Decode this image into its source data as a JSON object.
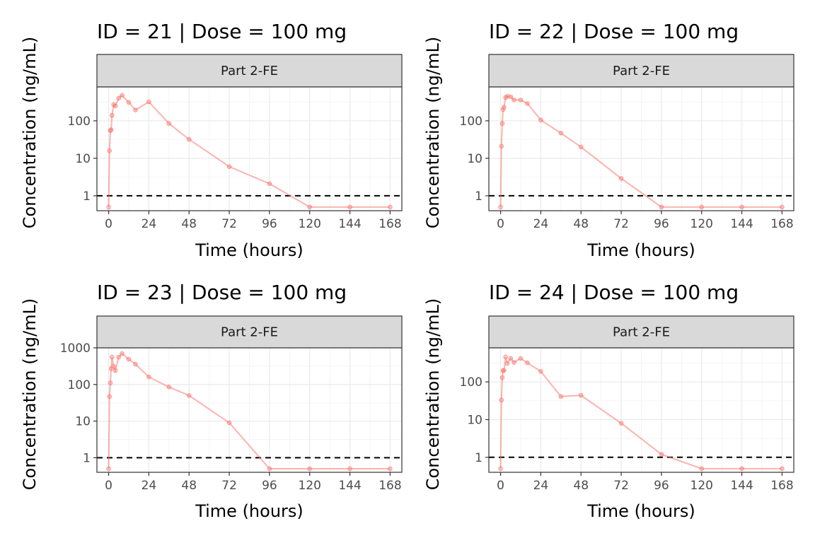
{
  "colors": {
    "series": "#f8766d",
    "strip_fill": "#d9d9d9",
    "strip_border": "#333333",
    "panel_border": "#333333",
    "grid_major": "#ebebeb",
    "grid_minor": "#f5f5f5",
    "reference_line": "#000000"
  },
  "chart_data": [
    {
      "type": "line",
      "title": "ID = 21 | Dose = 100 mg",
      "strip_label": "Part 2-FE",
      "xlabel": "Time (hours)",
      "ylabel": "Concentration (ng/mL)",
      "xlim": [
        -7,
        175
      ],
      "ylim": [
        0.4,
        800
      ],
      "y_scale": "log10",
      "x_ticks": [
        0,
        24,
        48,
        72,
        96,
        120,
        144,
        168
      ],
      "x_tick_labels": [
        "0",
        "24",
        "48",
        "72",
        "96",
        "120",
        "144",
        "168"
      ],
      "y_ticks": [
        1,
        10,
        100
      ],
      "y_tick_labels": [
        "1",
        "10",
        "100"
      ],
      "grid": true,
      "reference_line": {
        "y": 1,
        "style": "dashed"
      },
      "x": [
        0,
        0.5,
        1,
        1.5,
        2,
        3,
        4,
        6,
        8,
        12,
        16,
        24,
        36,
        48,
        72,
        96,
        120,
        144,
        168
      ],
      "y": [
        0.5,
        16,
        55,
        58,
        140,
        270,
        250,
        400,
        480,
        310,
        195,
        320,
        85,
        32,
        6,
        2.1,
        0.5,
        0.5,
        0.5
      ]
    },
    {
      "type": "line",
      "title": "ID = 22 | Dose = 100 mg",
      "strip_label": "Part 2-FE",
      "xlabel": "Time (hours)",
      "ylabel": "Concentration (ng/mL)",
      "xlim": [
        -7,
        175
      ],
      "ylim": [
        0.4,
        800
      ],
      "y_scale": "log10",
      "x_ticks": [
        0,
        24,
        48,
        72,
        96,
        120,
        144,
        168
      ],
      "x_tick_labels": [
        "0",
        "24",
        "48",
        "72",
        "96",
        "120",
        "144",
        "168"
      ],
      "y_ticks": [
        1,
        10,
        100
      ],
      "y_tick_labels": [
        "1",
        "10",
        "100"
      ],
      "grid": true,
      "reference_line": {
        "y": 1,
        "style": "dashed"
      },
      "x": [
        0,
        0.5,
        1,
        1.5,
        2,
        3,
        4,
        6,
        8,
        12,
        16,
        24,
        36,
        48,
        72,
        96,
        120,
        144,
        168
      ],
      "y": [
        0.5,
        21,
        85,
        200,
        230,
        420,
        450,
        440,
        360,
        360,
        290,
        105,
        47,
        20,
        2.9,
        0.5,
        0.5,
        0.5,
        0.5
      ]
    },
    {
      "type": "line",
      "title": "ID = 23 | Dose = 100 mg",
      "strip_label": "Part 2-FE",
      "xlabel": "Time (hours)",
      "ylabel": "Concentration (ng/mL)",
      "xlim": [
        -7,
        175
      ],
      "ylim": [
        0.4,
        1000
      ],
      "y_scale": "log10",
      "x_ticks": [
        0,
        24,
        48,
        72,
        96,
        120,
        144,
        168
      ],
      "x_tick_labels": [
        "0",
        "24",
        "48",
        "72",
        "96",
        "120",
        "144",
        "168"
      ],
      "y_ticks": [
        1,
        10,
        100,
        1000
      ],
      "y_tick_labels": [
        "1",
        "10",
        "100",
        "1000"
      ],
      "grid": true,
      "reference_line": {
        "y": 1,
        "style": "dashed"
      },
      "x": [
        0,
        0.5,
        1,
        1.5,
        2,
        3,
        4,
        6,
        8,
        12,
        16,
        24,
        36,
        48,
        72,
        96,
        120,
        144,
        168
      ],
      "y": [
        0.5,
        47,
        110,
        270,
        560,
        310,
        240,
        560,
        700,
        490,
        360,
        160,
        85,
        50,
        9,
        0.5,
        0.5,
        0.5,
        0.5
      ]
    },
    {
      "type": "line",
      "title": "ID = 24 | Dose = 100 mg",
      "strip_label": "Part 2-FE",
      "xlabel": "Time (hours)",
      "ylabel": "Concentration (ng/mL)",
      "xlim": [
        -7,
        175
      ],
      "ylim": [
        0.4,
        800
      ],
      "y_scale": "log10",
      "x_ticks": [
        0,
        24,
        48,
        72,
        96,
        120,
        144,
        168
      ],
      "x_tick_labels": [
        "0",
        "24",
        "48",
        "72",
        "96",
        "120",
        "144",
        "168"
      ],
      "y_ticks": [
        1,
        10,
        100
      ],
      "y_tick_labels": [
        "1",
        "10",
        "100"
      ],
      "grid": true,
      "reference_line": {
        "y": 1,
        "style": "dashed"
      },
      "x": [
        0,
        0.5,
        1,
        1.5,
        2,
        3,
        4,
        6,
        8,
        12,
        16,
        24,
        36,
        48,
        72,
        96,
        120,
        144,
        168
      ],
      "y": [
        0.5,
        33,
        130,
        200,
        200,
        460,
        310,
        420,
        330,
        420,
        320,
        190,
        41,
        44,
        8,
        1.2,
        0.5,
        0.5,
        0.5
      ]
    }
  ]
}
